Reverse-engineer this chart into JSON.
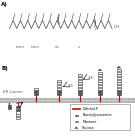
{
  "bg_color": "#ffffff",
  "chain_color": "#555555",
  "red_color": "#cc0000",
  "membrane_color_top": "#bbbbbb",
  "membrane_color_bot": "#999999",
  "panel_a_label": "A)",
  "panel_b_label": "B)",
  "er_lumen_label": "ER Lumen",
  "label_4_3": "4:3",
  "label_1_x": "1:X",
  "leg_dolichol": "Dolichol-P",
  "leg_glcnac": "N-acetylglucosamine",
  "leg_mannose": "Mannose",
  "leg_glucose": "Glucose"
}
